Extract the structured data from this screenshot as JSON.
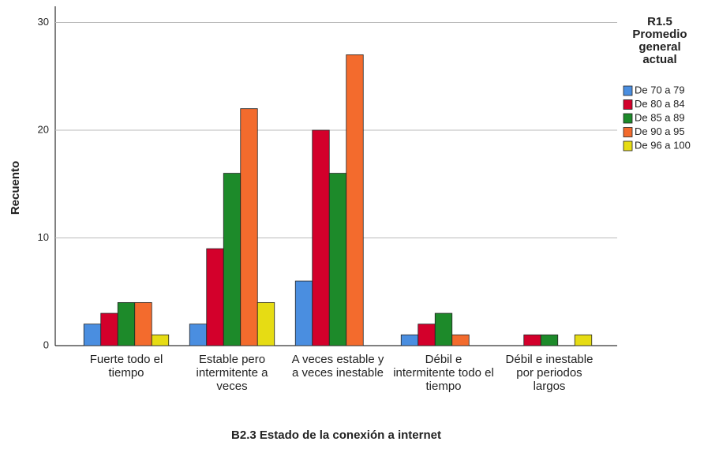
{
  "chart_data": {
    "type": "bar",
    "x_label": "B2.3 Estado de la conexión a internet",
    "y_label": "Recuento",
    "legend_title": "R1.5 Promedio general actual",
    "categories": [
      "Fuerte todo el tiempo",
      "Estable pero intermitente a veces",
      "A veces estable y a veces inestable",
      "Débil e intermitente todo el tiempo",
      "Débil e inestable por periodos largos"
    ],
    "series": [
      {
        "name": "De 70 a 79",
        "color": "#4a8ee0",
        "values": [
          2,
          2,
          6,
          1,
          null
        ]
      },
      {
        "name": "De 80 a 84",
        "color": "#d3002b",
        "values": [
          3,
          9,
          20,
          2,
          1
        ]
      },
      {
        "name": "De 85 a 89",
        "color": "#1d8a2a",
        "values": [
          4,
          16,
          16,
          3,
          1
        ]
      },
      {
        "name": "De 90 a 95",
        "color": "#f36b2d",
        "values": [
          4,
          22,
          27,
          1,
          null
        ]
      },
      {
        "name": "De 96 a 100",
        "color": "#e6dc14",
        "values": [
          1,
          4,
          null,
          null,
          1
        ]
      }
    ],
    "ylim": [
      0,
      31.5
    ],
    "yticks": [
      0,
      10,
      20,
      30
    ],
    "grid": true,
    "legend": "right"
  }
}
